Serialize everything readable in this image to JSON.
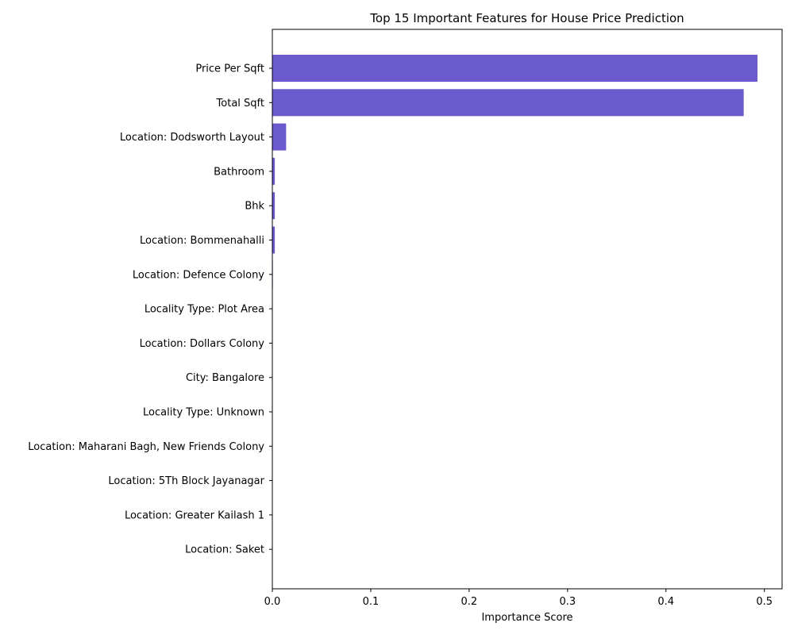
{
  "chart_data": {
    "type": "bar",
    "orientation": "horizontal",
    "title": "Top 15 Important Features for House Price Prediction",
    "xlabel": "Importance Score",
    "ylabel": "",
    "xlim": [
      0,
      0.518
    ],
    "x_ticks": [
      0.0,
      0.1,
      0.2,
      0.3,
      0.4,
      0.5
    ],
    "x_tick_labels": [
      "0.0",
      "0.1",
      "0.2",
      "0.3",
      "0.4",
      "0.5"
    ],
    "grid": false,
    "bar_color": "#6a5acd",
    "categories": [
      "Price Per Sqft",
      "Total Sqft",
      "Location: Dodsworth Layout",
      "Bathroom",
      "Bhk",
      "Location: Bommenahalli",
      "Location: Defence Colony",
      "Locality Type: Plot  Area",
      "Location: Dollars Colony",
      "City: Bangalore",
      "Locality Type: Unknown",
      "Location: Maharani Bagh, New Friends Colony",
      "Location: 5Th Block Jayanagar",
      "Location: Greater Kailash 1",
      "Location: Saket"
    ],
    "values": [
      0.493,
      0.479,
      0.014,
      0.0025,
      0.0025,
      0.0025,
      0.0005,
      0.0004,
      0.0004,
      0.0003,
      0.0003,
      0.0003,
      0.0002,
      0.0002,
      0.0002
    ]
  }
}
